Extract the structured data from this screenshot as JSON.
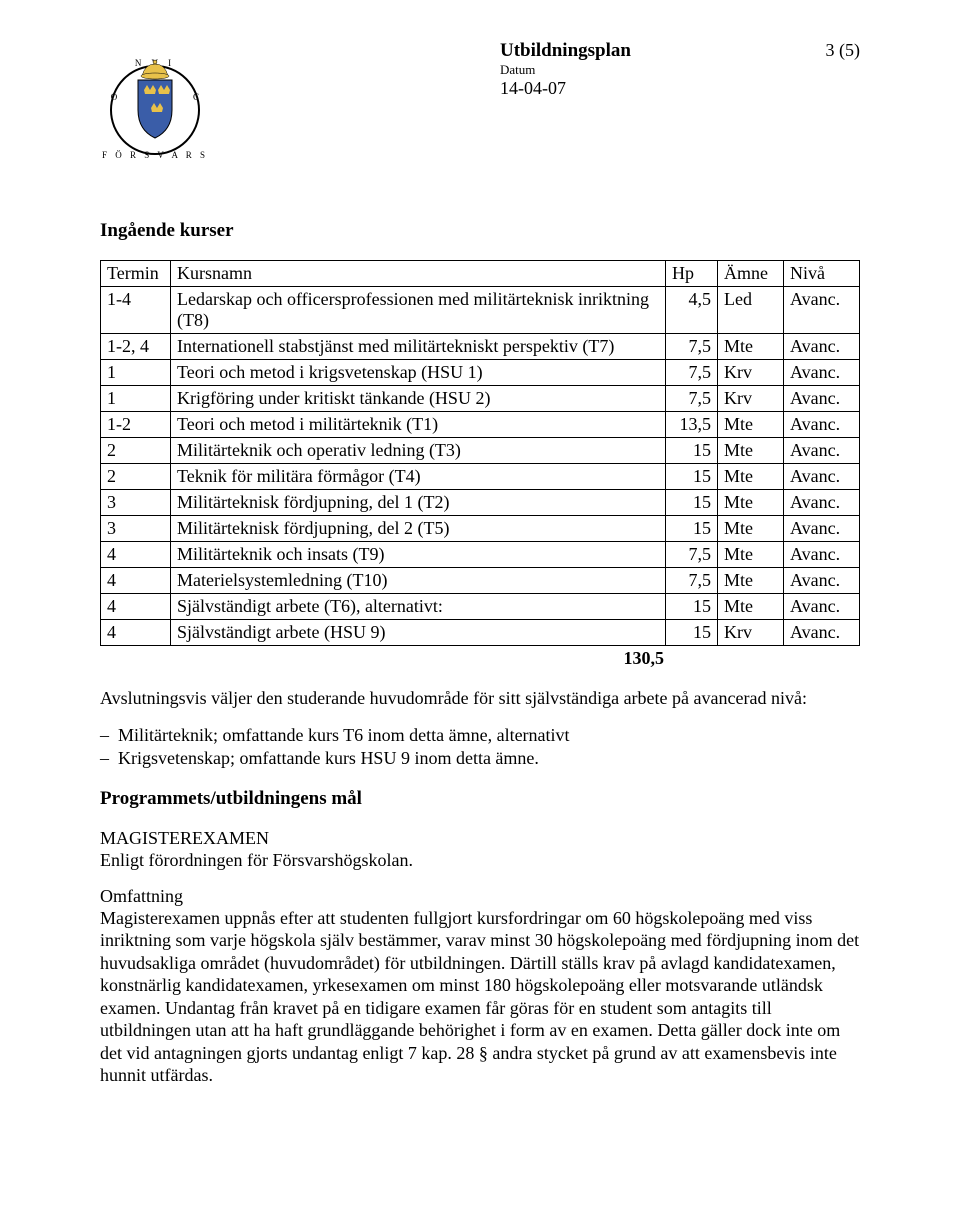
{
  "header": {
    "title": "Utbildningsplan",
    "sub": "Datum",
    "date": "14-04-07",
    "pagenum": "3 (5)"
  },
  "section_title": "Ingående kurser",
  "table": {
    "columns": [
      "Termin",
      "Kursnamn",
      "Hp",
      "Ämne",
      "Nivå"
    ],
    "col_widths": [
      "70px",
      "auto",
      "52px",
      "66px",
      "76px"
    ],
    "rows": [
      {
        "c0": "1-4",
        "c1": "Ledarskap och officersprofessionen med militärteknisk inriktning (T8)",
        "c2": "4,5",
        "c3": "Led",
        "c4": "Avanc."
      },
      {
        "c0": "1-2, 4",
        "c1": "Internationell stabstjänst med militärtekniskt perspektiv (T7)",
        "c2": "7,5",
        "c3": "Mte",
        "c4": "Avanc."
      },
      {
        "c0": "1",
        "c1": "Teori och metod i krigsvetenskap (HSU 1)",
        "c2": "7,5",
        "c3": "Krv",
        "c4": "Avanc."
      },
      {
        "c0": "1",
        "c1": "Krigföring under kritiskt tänkande (HSU 2)",
        "c2": "7,5",
        "c3": "Krv",
        "c4": "Avanc."
      },
      {
        "c0": "1-2",
        "c1": "Teori och metod i militärteknik (T1)",
        "c2": "13,5",
        "c3": "Mte",
        "c4": "Avanc."
      },
      {
        "c0": "2",
        "c1": "Militärteknik och operativ ledning (T3)",
        "c2": "15",
        "c3": "Mte",
        "c4": "Avanc."
      },
      {
        "c0": "2",
        "c1": "Teknik för militära förmågor (T4)",
        "c2": "15",
        "c3": "Mte",
        "c4": "Avanc."
      },
      {
        "c0": "3",
        "c1": "Militärteknisk fördjupning, del 1 (T2)",
        "c2": "15",
        "c3": "Mte",
        "c4": "Avanc."
      },
      {
        "c0": "3",
        "c1": "Militärteknisk fördjupning, del 2 (T5)",
        "c2": "15",
        "c3": "Mte",
        "c4": "Avanc."
      },
      {
        "c0": "4",
        "c1": "Militärteknik och insats (T9)",
        "c2": "7,5",
        "c3": "Mte",
        "c4": "Avanc."
      },
      {
        "c0": "4",
        "c1": "Materielsystemledning (T10)",
        "c2": "7,5",
        "c3": "Mte",
        "c4": "Avanc."
      },
      {
        "c0": "4",
        "c1": "Självständigt arbete (T6), alternativt:",
        "c2": "15",
        "c3": "Mte",
        "c4": "Avanc."
      },
      {
        "c0": "4",
        "c1": "Självständigt arbete (HSU 9)",
        "c2": "15",
        "c3": "Krv",
        "c4": "Avanc."
      }
    ],
    "total": "130,5"
  },
  "para1": "Avslutningsvis väljer den studerande huvudområde för sitt självständiga arbete på avancerad nivå:",
  "bullets": [
    "Militärteknik; omfattande kurs T6 inom detta ämne, alternativt",
    "Krigsvetenskap; omfattande kurs HSU 9 inom detta ämne."
  ],
  "heading2": "Programmets/utbildningens mål",
  "mag_title": "MAGISTEREXAMEN",
  "mag_line": "Enligt förordningen för Försvarshögskolan.",
  "omf_title": "Omfattning",
  "omf_text": "Magisterexamen uppnås efter att studenten fullgjort kursfordringar om 60 högskolepoäng med viss inriktning som varje högskola själv bestämmer, varav minst 30 högskolepoäng med fördjupning inom det huvudsakliga området (huvudområdet) för utbildningen. Därtill ställs krav på avlagd kandidatexamen, konstnärlig kandidatexamen, yrkesexamen om minst 180 högskolepoäng eller motsvarande utländsk examen. Undantag från kravet på en tidigare examen får göras för en student som antagits till utbildningen utan att ha haft grundläggande behörighet i form av en examen. Detta gäller dock inte om det vid antagningen gjorts undantag enligt 7 kap. 28 § andra stycket på grund av att examensbevis inte hunnit utfärdas."
}
